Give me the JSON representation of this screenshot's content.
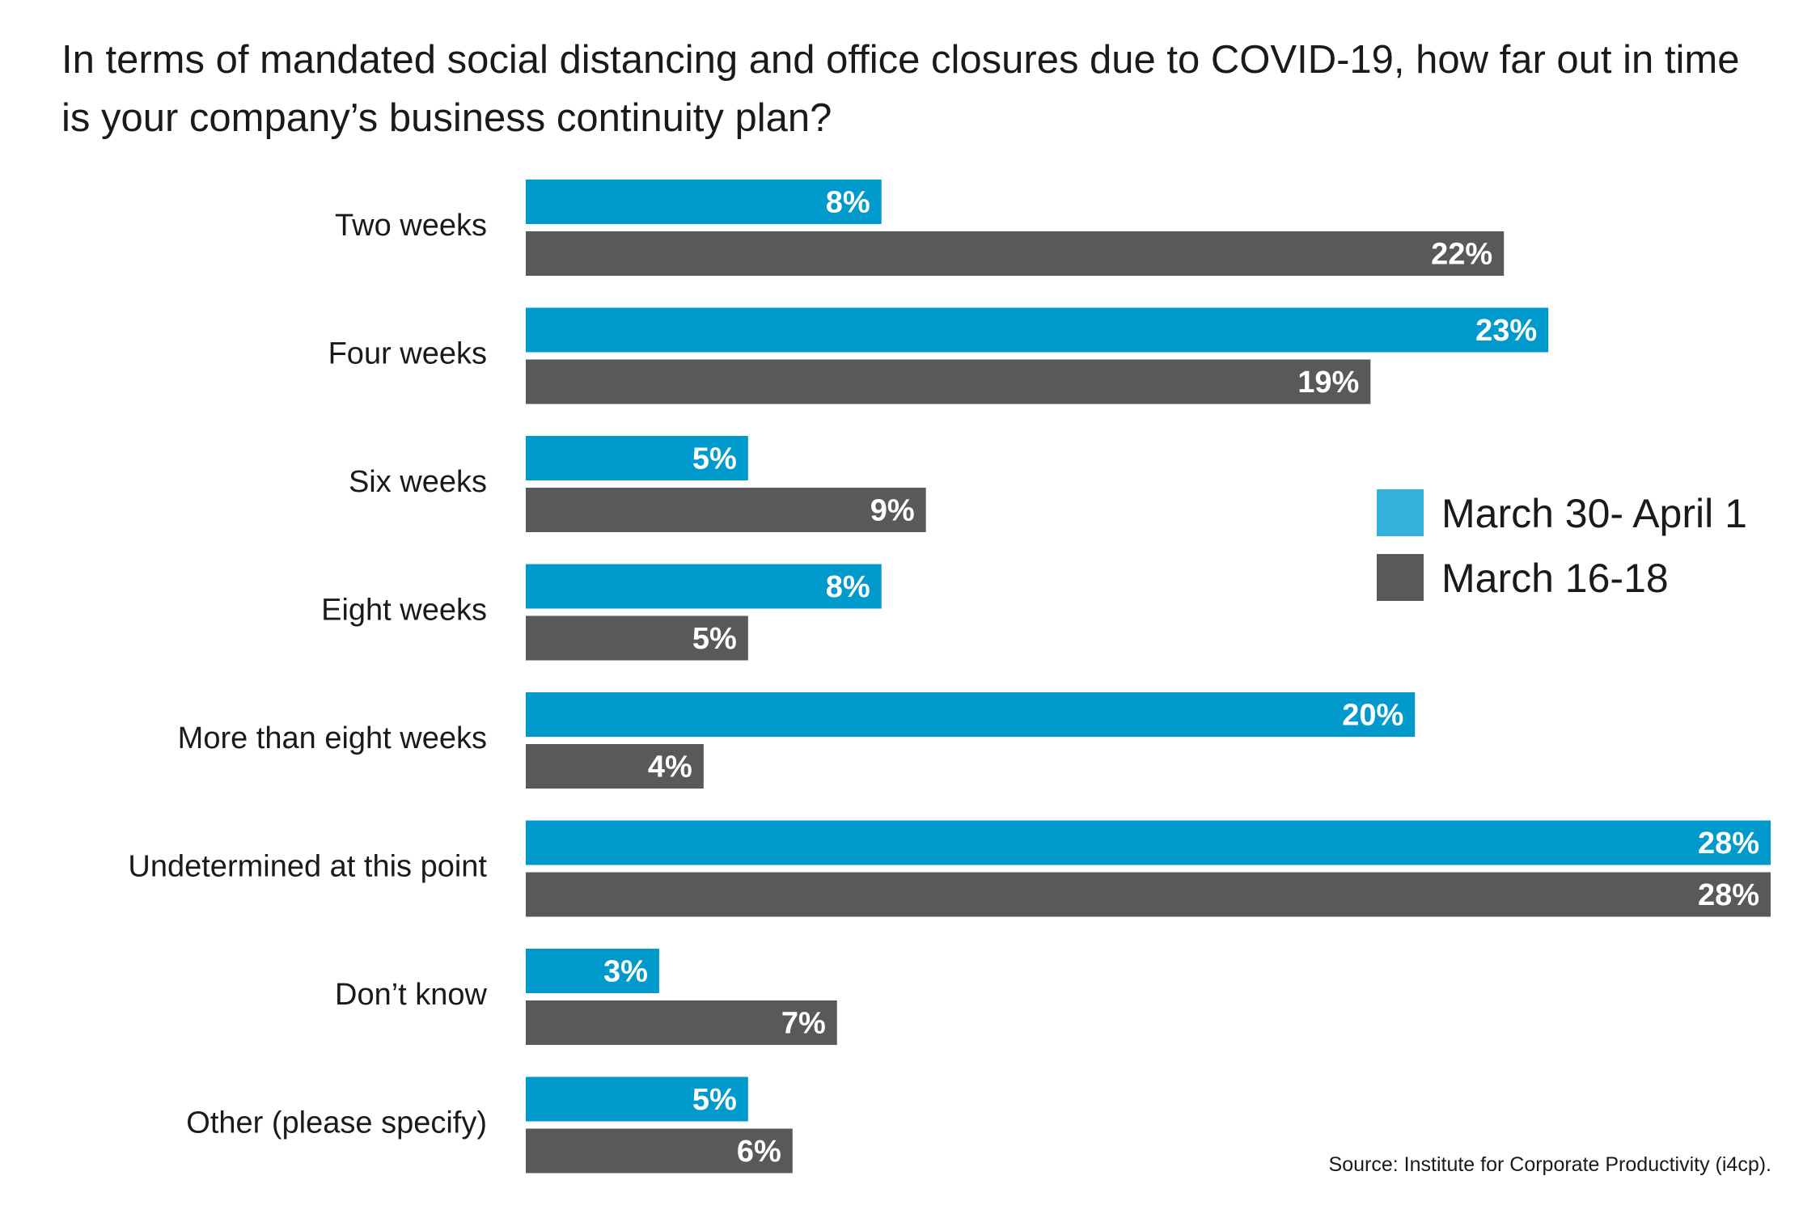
{
  "chart_data": {
    "type": "bar",
    "orientation": "horizontal",
    "title": "In terms of mandated social distancing and office closures due to COVID-19, how far out in time is your company’s business continuity plan?",
    "categories": [
      "Two weeks",
      "Four weeks",
      "Six weeks",
      "Eight weeks",
      "More than eight weeks",
      "Undetermined at this point",
      "Don’t know",
      "Other (please specify)"
    ],
    "series": [
      {
        "name": "March 30- April 1",
        "color": "#0099cc",
        "values": [
          8,
          23,
          5,
          8,
          20,
          28,
          3,
          5
        ],
        "labels": [
          "8%",
          "23%",
          "5%",
          "8%",
          "20%",
          "28%",
          "3%",
          "5%"
        ]
      },
      {
        "name": "March 16-18",
        "color": "#58595b",
        "values": [
          22,
          19,
          9,
          5,
          4,
          28,
          7,
          6
        ],
        "labels": [
          "22%",
          "19%",
          "9%",
          "5%",
          "4%",
          "28%",
          "7%",
          "6%"
        ]
      }
    ],
    "xlim": [
      0,
      28
    ],
    "legend": {
      "position": "right",
      "swatch_colors": [
        "#33b0dc",
        "#58595b"
      ]
    },
    "grid": false,
    "source": "Source: Institute for Corporate Productivity (i4cp)."
  }
}
